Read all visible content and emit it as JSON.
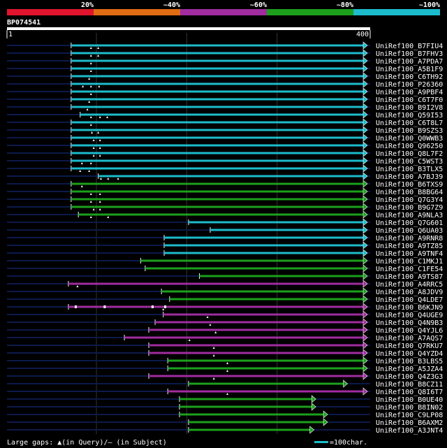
{
  "chart_data": {
    "type": "alignment-overview",
    "query_id": "BP074541",
    "axis": {
      "start_label": "1",
      "end_label": "400",
      "min": 1,
      "max": 400
    },
    "identity_legend": [
      {
        "label": "20%",
        "color": "#e0142c"
      },
      {
        "label": "~40%",
        "color": "#e06c14"
      },
      {
        "label": "~60%",
        "color": "#a02ca0"
      },
      {
        "label": "~80%",
        "color": "#1ca01c"
      },
      {
        "label": "~100%",
        "color": "#1cbccc"
      }
    ],
    "footer": {
      "gaps_text": "Large gaps: ▲(in Query)/– (in Subject)",
      "scale_text": "=100char."
    },
    "hits": [
      {
        "name": "UniRef100_B7FIU4",
        "start": 72,
        "end": 400,
        "cls": "c",
        "arrow": true,
        "gaps": [
          94,
          102
        ]
      },
      {
        "name": "UniRef100_B7FHV3",
        "start": 72,
        "end": 400,
        "cls": "c",
        "arrow": true,
        "gaps": [
          94,
          102
        ]
      },
      {
        "name": "UniRef100_A7PDA7",
        "start": 72,
        "end": 400,
        "cls": "c",
        "arrow": true,
        "gaps": [
          94
        ]
      },
      {
        "name": "UniRef100_A5B1F9",
        "start": 72,
        "end": 400,
        "cls": "c",
        "arrow": true,
        "gaps": [
          94
        ]
      },
      {
        "name": "UniRef100_C6TH92",
        "start": 72,
        "end": 400,
        "cls": "c",
        "arrow": true,
        "gaps": [
          92
        ]
      },
      {
        "name": "UniRef100_P26360",
        "start": 72,
        "end": 400,
        "cls": "c",
        "arrow": true,
        "gaps": [
          85,
          94,
          103
        ]
      },
      {
        "name": "UniRef100_A9PBF4",
        "start": 72,
        "end": 400,
        "cls": "c",
        "arrow": true,
        "gaps": [
          94
        ]
      },
      {
        "name": "UniRef100_C6T7F0",
        "start": 72,
        "end": 400,
        "cls": "c",
        "arrow": true,
        "gaps": [
          92
        ]
      },
      {
        "name": "UniRef100_B9I2V8",
        "start": 72,
        "end": 400,
        "cls": "c",
        "arrow": true,
        "gaps": [
          90
        ]
      },
      {
        "name": "UniRef100_Q59I53",
        "start": 82,
        "end": 400,
        "cls": "c",
        "arrow": true,
        "gaps": [
          94,
          104,
          112
        ]
      },
      {
        "name": "UniRef100_C6T8L7",
        "start": 72,
        "end": 400,
        "cls": "c",
        "arrow": true,
        "gaps": [
          94
        ]
      },
      {
        "name": "UniRef100_B9SZS3",
        "start": 72,
        "end": 400,
        "cls": "c",
        "arrow": true,
        "gaps": [
          95,
          102
        ]
      },
      {
        "name": "UniRef100_Q0WWB3",
        "start": 72,
        "end": 400,
        "cls": "c",
        "arrow": true,
        "gaps": [
          97,
          104
        ]
      },
      {
        "name": "UniRef100_Q96250",
        "start": 72,
        "end": 400,
        "cls": "c",
        "arrow": true,
        "gaps": [
          97,
          104
        ]
      },
      {
        "name": "UniRef100_Q8L7F2",
        "start": 72,
        "end": 400,
        "cls": "c",
        "arrow": true,
        "gaps": [
          97,
          104
        ]
      },
      {
        "name": "UniRef100_C5WST3",
        "start": 72,
        "end": 400,
        "cls": "c",
        "arrow": true,
        "gaps": [
          84,
          94
        ]
      },
      {
        "name": "UniRef100_B3TLX5",
        "start": 72,
        "end": 400,
        "cls": "c",
        "arrow": true,
        "gaps": [
          82,
          92
        ]
      },
      {
        "name": "UniRef100_A7BJ39",
        "start": 102,
        "end": 400,
        "cls": "c",
        "arrow": true,
        "gaps": [
          105,
          113,
          124
        ]
      },
      {
        "name": "UniRef100_B6TXS9",
        "start": 72,
        "end": 400,
        "cls": "g",
        "arrow": true,
        "gaps": [
          84
        ]
      },
      {
        "name": "UniRef100_B8BG64",
        "start": 72,
        "end": 400,
        "cls": "g",
        "arrow": true,
        "gaps": [
          94,
          104
        ]
      },
      {
        "name": "UniRef100_Q7G3Y4",
        "start": 72,
        "end": 400,
        "cls": "g",
        "arrow": true,
        "gaps": [
          94,
          104
        ]
      },
      {
        "name": "UniRef100_B9G7Z9",
        "start": 72,
        "end": 400,
        "cls": "g",
        "arrow": true,
        "gaps": [
          97,
          104
        ]
      },
      {
        "name": "UniRef100_A9NLA3",
        "start": 80,
        "end": 400,
        "cls": "g",
        "arrow": true,
        "gaps": [
          94,
          113
        ]
      },
      {
        "name": "UniRef100_Q7G601",
        "start": 202,
        "end": 400,
        "cls": "c",
        "arrow": true,
        "gaps": []
      },
      {
        "name": "UniRef100_Q6UA03",
        "start": 226,
        "end": 400,
        "cls": "c",
        "arrow": true,
        "gaps": []
      },
      {
        "name": "UniRef100_A9RNR8",
        "start": 175,
        "end": 400,
        "cls": "c",
        "arrow": true,
        "gaps": []
      },
      {
        "name": "UniRef100_A9TZ85",
        "start": 175,
        "end": 400,
        "cls": "c",
        "arrow": true,
        "gaps": []
      },
      {
        "name": "UniRef100_A9TNF4",
        "start": 175,
        "end": 400,
        "cls": "c",
        "arrow": true,
        "gaps": []
      },
      {
        "name": "UniRef100_C1MKJ1",
        "start": 149,
        "end": 400,
        "cls": "g",
        "arrow": true,
        "gaps": []
      },
      {
        "name": "UniRef100_C1FE54",
        "start": 154,
        "end": 400,
        "cls": "g",
        "arrow": true,
        "gaps": []
      },
      {
        "name": "UniRef100_A9TS87",
        "start": 214,
        "end": 400,
        "cls": "g",
        "arrow": true,
        "gaps": []
      },
      {
        "name": "UniRef100_A4RRC5",
        "start": 69,
        "end": 400,
        "cls": "p",
        "arrow": true,
        "gaps": [
          79
        ]
      },
      {
        "name": "UniRef100_A8JDV9",
        "start": 172,
        "end": 400,
        "cls": "g",
        "arrow": true,
        "gaps": []
      },
      {
        "name": "UniRef100_Q4LDE7",
        "start": 181,
        "end": 400,
        "cls": "g",
        "arrow": true,
        "gaps": []
      },
      {
        "name": "UniRef100_B6KJN9",
        "start": 69,
        "end": 400,
        "cls": "p",
        "arrow": true,
        "gaps": [
          174
        ],
        "dashes": [
          76,
          108,
          161,
          175
        ]
      },
      {
        "name": "UniRef100_Q4UGE9",
        "start": 174,
        "end": 400,
        "cls": "p",
        "arrow": true,
        "gaps": [
          223
        ]
      },
      {
        "name": "UniRef100_Q4N9B3",
        "start": 165,
        "end": 400,
        "cls": "p",
        "arrow": true,
        "gaps": [
          226
        ]
      },
      {
        "name": "UniRef100_Q4YJL6",
        "start": 158,
        "end": 400,
        "cls": "p",
        "arrow": true,
        "gaps": [
          232
        ]
      },
      {
        "name": "UniRef100_A7AQS7",
        "start": 131,
        "end": 400,
        "cls": "p",
        "arrow": true,
        "gaps": [
          203
        ]
      },
      {
        "name": "UniRef100_Q7RKU7",
        "start": 158,
        "end": 400,
        "cls": "p",
        "arrow": true,
        "gaps": [
          230
        ]
      },
      {
        "name": "UniRef100_Q4YZD4",
        "start": 158,
        "end": 400,
        "cls": "p",
        "arrow": true,
        "gaps": [
          230
        ]
      },
      {
        "name": "UniRef100_B3LBS5",
        "start": 179,
        "end": 400,
        "cls": "g",
        "arrow": true,
        "gaps": [
          245
        ]
      },
      {
        "name": "UniRef100_A5JZA4",
        "start": 179,
        "end": 400,
        "cls": "g",
        "arrow": true,
        "gaps": [
          245
        ]
      },
      {
        "name": "UniRef100_Q4Z3G3",
        "start": 158,
        "end": 400,
        "cls": "p",
        "arrow": true,
        "gaps": [
          230
        ]
      },
      {
        "name": "UniRef100_B8CZ11",
        "start": 202,
        "end": 378,
        "cls": "g",
        "arrow": true,
        "gaps": []
      },
      {
        "name": "UniRef100_Q8I6T7",
        "start": 179,
        "end": 400,
        "cls": "p",
        "arrow": true,
        "gaps": [
          245
        ]
      },
      {
        "name": "UniRef100_B0UE40",
        "start": 192,
        "end": 343,
        "cls": "g",
        "arrow": true,
        "gaps": []
      },
      {
        "name": "UniRef100_B8IN02",
        "start": 192,
        "end": 343,
        "cls": "g",
        "arrow": true,
        "gaps": []
      },
      {
        "name": "UniRef100_C9LP08",
        "start": 192,
        "end": 356,
        "cls": "g",
        "arrow": true,
        "gaps": []
      },
      {
        "name": "UniRef100_B6AXM2",
        "start": 202,
        "end": 356,
        "cls": "g",
        "arrow": true,
        "gaps": []
      },
      {
        "name": "UniRef100_A3JNT4",
        "start": 202,
        "end": 341,
        "cls": "g",
        "arrow": true,
        "gaps": []
      }
    ]
  }
}
